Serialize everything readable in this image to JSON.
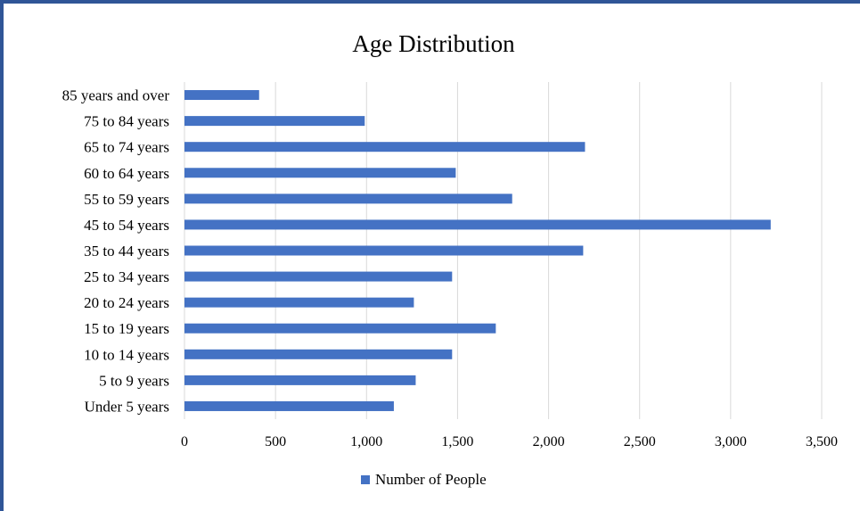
{
  "chart_data": {
    "type": "bar",
    "orientation": "horizontal",
    "title": "Age Distribution",
    "xlabel": "",
    "ylabel": "",
    "categories": [
      "Under 5 years",
      "5 to 9 years",
      "10 to 14 years",
      "15 to 19 years",
      "20 to 24 years",
      "25 to 34 years",
      "35 to 44 years",
      "45 to 54 years",
      "55 to 59 years",
      "60 to 64 years",
      "65 to 74 years",
      "75 to 84 years",
      "85 years and over"
    ],
    "series": [
      {
        "name": "Number of People",
        "color": "#4472c4",
        "values": [
          1150,
          1270,
          1470,
          1710,
          1260,
          1470,
          2190,
          3220,
          1800,
          1490,
          2200,
          990,
          410
        ]
      }
    ],
    "xlim": [
      0,
      3500
    ],
    "x_ticks": [
      "0",
      "500",
      "1,000",
      "1,500",
      "2,000",
      "2,500",
      "3,000",
      "3,500"
    ],
    "x_tick_values": [
      0,
      500,
      1000,
      1500,
      2000,
      2500,
      3000,
      3500
    ],
    "grid": "vertical",
    "legend": "bottom"
  }
}
